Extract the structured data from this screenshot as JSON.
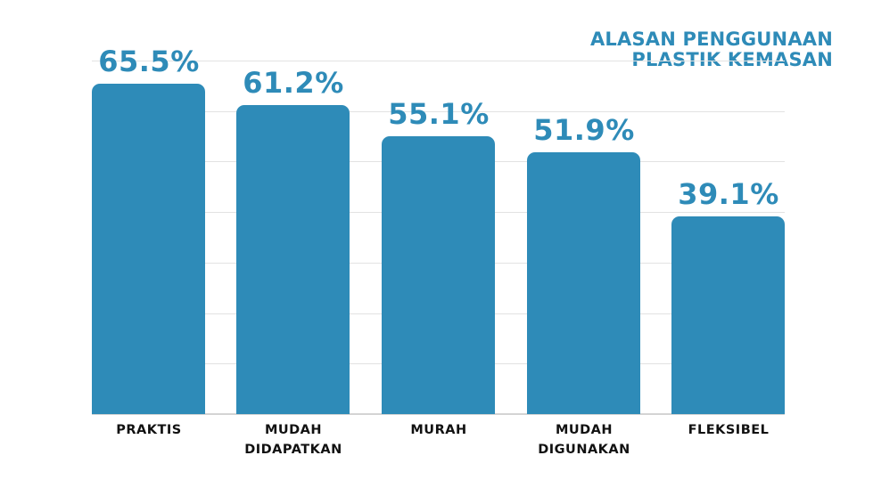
{
  "title": {
    "line1": "ALASAN PENGGUNAAN",
    "line2": "PLASTIK KEMASAN"
  },
  "colors": {
    "bar": "#2e8bb8",
    "value_label": "#2e8bb8",
    "title": "#2e8bb8",
    "category_label": "#111111",
    "grid": "#e2e2e2"
  },
  "bars": [
    {
      "label_line1": "PRAKTIS",
      "label_line2": "",
      "value": 65.5,
      "value_label": "65.5%"
    },
    {
      "label_line1": "MUDAH",
      "label_line2": "DIDAPATKAN",
      "value": 61.2,
      "value_label": "61.2%"
    },
    {
      "label_line1": "MURAH",
      "label_line2": "",
      "value": 55.1,
      "value_label": "55.1%"
    },
    {
      "label_line1": "MUDAH",
      "label_line2": "DIGUNAKAN",
      "value": 51.9,
      "value_label": "51.9%"
    },
    {
      "label_line1": "FLEKSIBEL",
      "label_line2": "",
      "value": 39.1,
      "value_label": "39.1%"
    }
  ],
  "chart_data": {
    "type": "bar",
    "title": "ALASAN PENGGUNAAN PLASTIK KEMASAN",
    "categories": [
      "PRAKTIS",
      "MUDAH DIDAPATKAN",
      "MURAH",
      "MUDAH DIGUNAKAN",
      "FLEKSIBEL"
    ],
    "values": [
      65.5,
      61.2,
      55.1,
      51.9,
      39.1
    ],
    "data_labels": [
      "65.5%",
      "61.2%",
      "55.1%",
      "51.9%",
      "39.1%"
    ],
    "unit": "%",
    "xlabel": "",
    "ylabel": "",
    "ylim": [
      0,
      70
    ],
    "grid": true,
    "grid_step": 10,
    "y_axis_visible": false,
    "legend": "none",
    "bar_color": "#2e8bb8"
  }
}
